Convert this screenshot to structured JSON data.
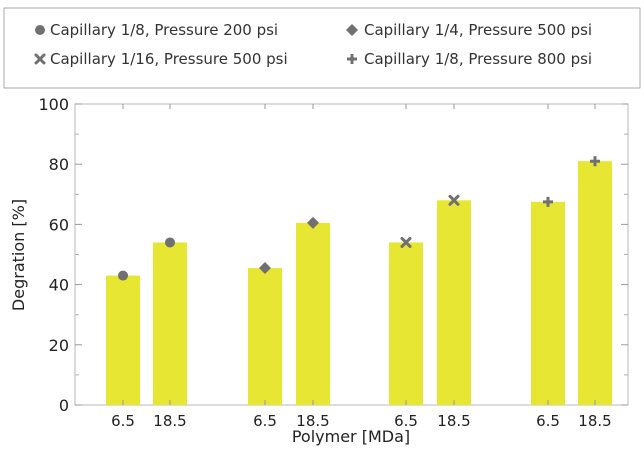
{
  "chart_data": {
    "type": "bar",
    "xlabel": "Polymer [MDa]",
    "ylabel": "Degration [%]",
    "ylim": [
      0,
      100
    ],
    "yticks": [
      0,
      20,
      40,
      60,
      80,
      100
    ],
    "grid": false,
    "legend_position": "top",
    "bar_color": "#e6e633",
    "marker_color": "#707070",
    "groups": [
      {
        "name": "Capillary 1/8, Pressure 200 psi",
        "marker": "circle",
        "categories": [
          "6.5",
          "18.5"
        ],
        "values": [
          43,
          54
        ]
      },
      {
        "name": "Capillary 1/4, Pressure 500 psi",
        "marker": "diamond",
        "categories": [
          "6.5",
          "18.5"
        ],
        "values": [
          45.5,
          60.5
        ]
      },
      {
        "name": "Capillary 1/16, Pressure 500 psi",
        "marker": "x",
        "categories": [
          "6.5",
          "18.5"
        ],
        "values": [
          54,
          68
        ]
      },
      {
        "name": "Capillary 1/8, Pressure 800 psi",
        "marker": "plus",
        "categories": [
          "6.5",
          "18.5"
        ],
        "values": [
          67.5,
          81
        ]
      }
    ]
  }
}
